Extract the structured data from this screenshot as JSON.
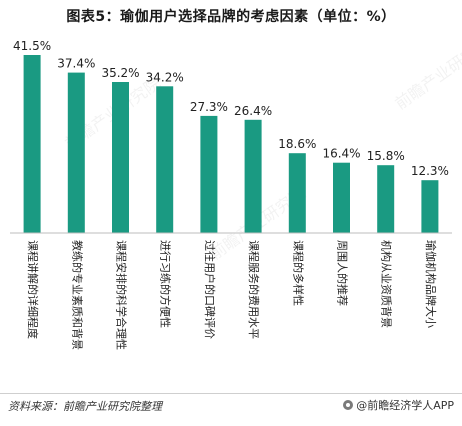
{
  "chart_data": {
    "type": "bar",
    "title": "图表5：瑜伽用户选择品牌的考虑因素（单位：%）",
    "categories": [
      "课程讲解的详细程度",
      "教练的专业素质和背景",
      "课程安排的科学合理性",
      "进行习练的方便性",
      "过往用户的口碑评价",
      "课程服务的费用水平",
      "课程的多样性",
      "周围人的推荐",
      "机构从业资质背景",
      "瑜伽机构品牌大小"
    ],
    "values": [
      41.5,
      37.4,
      35.2,
      34.2,
      27.3,
      26.4,
      18.6,
      16.4,
      15.8,
      12.3
    ],
    "value_labels": [
      "41.5%",
      "37.4%",
      "35.2%",
      "34.2%",
      "27.3%",
      "26.4%",
      "18.6%",
      "16.4%",
      "15.8%",
      "12.3%"
    ],
    "ylim": [
      0,
      45
    ],
    "bar_color": "#1a9a82",
    "grid": false,
    "legend": "none"
  },
  "footer": {
    "source": "资料来源：前瞻产业研究院整理",
    "brand": "@前瞻经济学人APP"
  },
  "watermark": "前瞻产业研究院"
}
